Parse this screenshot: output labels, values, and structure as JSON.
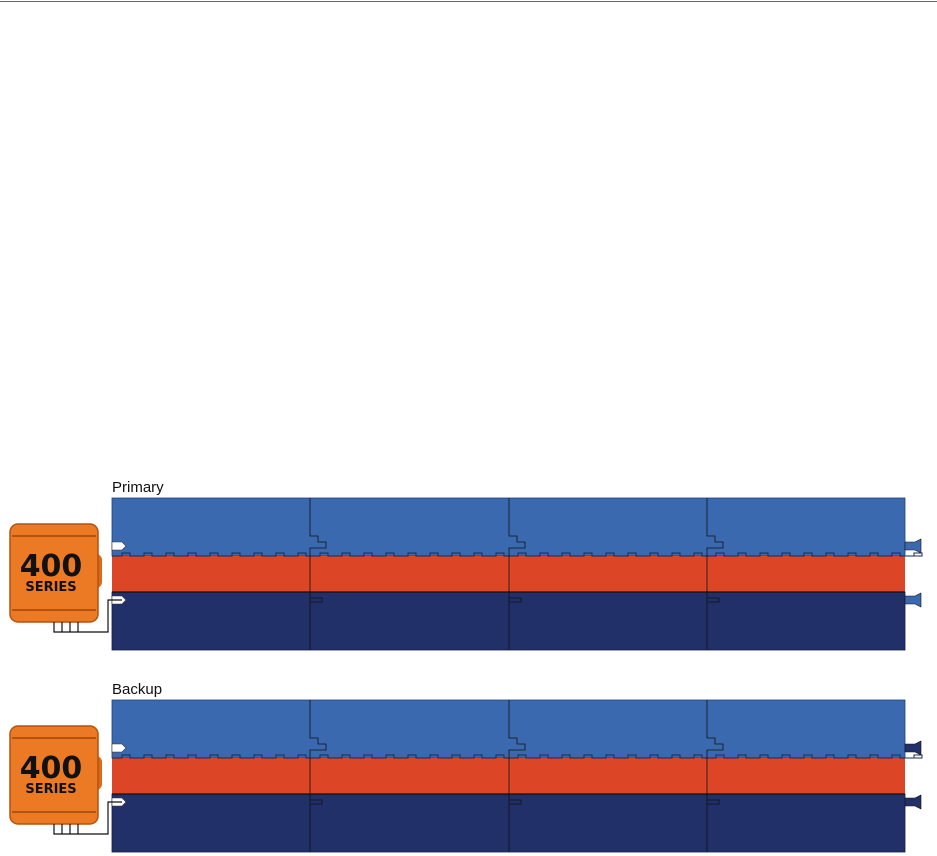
{
  "panels": [
    {
      "label": "Primary",
      "device": {
        "number": "400",
        "series": "SERIES"
      }
    },
    {
      "label": "Backup",
      "device": {
        "number": "400",
        "series": "SERIES"
      }
    }
  ]
}
